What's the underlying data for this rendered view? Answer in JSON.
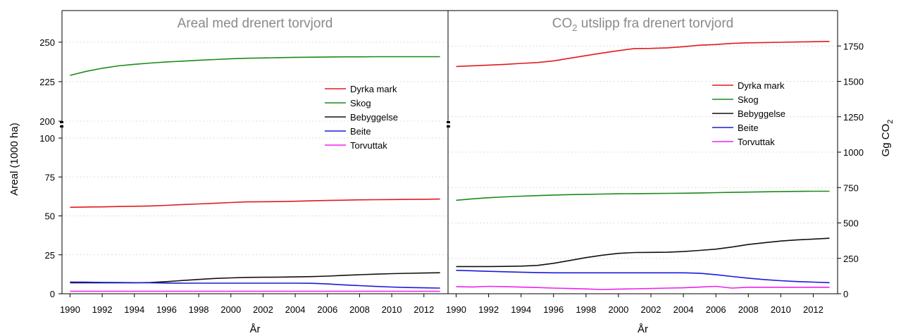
{
  "chart_data": [
    {
      "type": "line",
      "title": "Areal med drenert torvjord",
      "xlabel": "År",
      "ylabel": "Areal (1000 ha)",
      "xlim": [
        1989.5,
        2013.5
      ],
      "x_ticks": [
        1990,
        1992,
        1994,
        1996,
        1998,
        2000,
        2002,
        2004,
        2006,
        2008,
        2010,
        2012
      ],
      "y_axis_broken": true,
      "y_lower_range": [
        0,
        100
      ],
      "y_lower_ticks": [
        0,
        25,
        50,
        75,
        100
      ],
      "y_upper_range": [
        200,
        270
      ],
      "y_upper_ticks": [
        200,
        225,
        250
      ],
      "grid": "horizontal",
      "legend_position": "right",
      "x": [
        1990,
        1991,
        1992,
        1993,
        1994,
        1995,
        1996,
        1997,
        1998,
        1999,
        2000,
        2001,
        2002,
        2003,
        2004,
        2005,
        2006,
        2007,
        2008,
        2009,
        2010,
        2011,
        2012,
        2013
      ],
      "series": [
        {
          "name": "Dyrka mark",
          "color": "#e31a1c",
          "values": [
            55.5,
            55.7,
            55.8,
            56.0,
            56.2,
            56.4,
            56.8,
            57.3,
            57.7,
            58.1,
            58.6,
            59.0,
            59.1,
            59.2,
            59.4,
            59.7,
            59.9,
            60.1,
            60.3,
            60.4,
            60.5,
            60.6,
            60.7,
            60.8
          ]
        },
        {
          "name": "Skog",
          "color": "#1a8a1a",
          "values": [
            229,
            231.5,
            233.5,
            235,
            236,
            236.8,
            237.5,
            238,
            238.5,
            239,
            239.5,
            239.8,
            240,
            240.2,
            240.4,
            240.5,
            240.6,
            240.7,
            240.7,
            240.8,
            240.8,
            240.8,
            240.8,
            240.8
          ]
        },
        {
          "name": "Bebyggelse",
          "color": "#111111",
          "values": [
            7.0,
            7.0,
            7.0,
            7.0,
            7.0,
            7.2,
            7.8,
            8.5,
            9.2,
            9.8,
            10.2,
            10.5,
            10.6,
            10.7,
            10.8,
            11.0,
            11.3,
            11.8,
            12.2,
            12.6,
            12.9,
            13.1,
            13.3,
            13.5
          ]
        },
        {
          "name": "Beite",
          "color": "#1a1adb",
          "values": [
            7.5,
            7.4,
            7.3,
            7.2,
            7.1,
            7.0,
            6.9,
            6.8,
            6.8,
            6.8,
            6.8,
            6.8,
            6.8,
            6.8,
            6.8,
            6.7,
            6.3,
            5.7,
            5.2,
            4.7,
            4.3,
            4.0,
            3.8,
            3.6
          ]
        },
        {
          "name": "Torvuttak",
          "color": "#ee22ee",
          "values": [
            1.6,
            1.6,
            1.6,
            1.6,
            1.6,
            1.6,
            1.6,
            1.6,
            1.6,
            1.6,
            1.6,
            1.6,
            1.6,
            1.6,
            1.6,
            1.6,
            1.6,
            1.6,
            1.6,
            1.6,
            1.6,
            1.6,
            1.6,
            1.6
          ]
        }
      ]
    },
    {
      "type": "line",
      "title_main": "CO",
      "title_sub": "2",
      "title_rest": " utslipp fra drenert torvjord",
      "xlabel": "År",
      "ylabel_main": "Gg CO",
      "ylabel_sub": "2",
      "xlim": [
        1989.5,
        2013.5
      ],
      "x_ticks": [
        1990,
        1992,
        1994,
        1996,
        1998,
        2000,
        2002,
        2004,
        2006,
        2008,
        2010,
        2012
      ],
      "ylim": [
        0,
        2000
      ],
      "y_ticks": [
        0,
        250,
        500,
        750,
        1000,
        1250,
        1500,
        1750
      ],
      "y_axis_side": "right",
      "grid": "horizontal",
      "legend_position": "right",
      "x": [
        1990,
        1991,
        1992,
        1993,
        1994,
        1995,
        1996,
        1997,
        1998,
        1999,
        2000,
        2001,
        2002,
        2003,
        2004,
        2005,
        2006,
        2007,
        2008,
        2009,
        2010,
        2011,
        2012,
        2013
      ],
      "series": [
        {
          "name": "Dyrka mark",
          "color": "#e31a1c",
          "values": [
            1605,
            1610,
            1615,
            1620,
            1627,
            1633,
            1645,
            1663,
            1682,
            1700,
            1717,
            1732,
            1733,
            1737,
            1745,
            1755,
            1760,
            1768,
            1772,
            1774,
            1776,
            1778,
            1780,
            1782
          ]
        },
        {
          "name": "Skog",
          "color": "#1a8a1a",
          "values": [
            660,
            670,
            678,
            684,
            689,
            693,
            697,
            700,
            702,
            704,
            706,
            707,
            708,
            709,
            710,
            712,
            714,
            716,
            718,
            720,
            722,
            723,
            724,
            724
          ]
        },
        {
          "name": "Bebyggelse",
          "color": "#111111",
          "values": [
            192,
            192,
            192,
            193,
            195,
            200,
            215,
            235,
            255,
            272,
            285,
            291,
            292,
            293,
            298,
            306,
            315,
            330,
            348,
            360,
            372,
            380,
            386,
            392
          ]
        },
        {
          "name": "Beite",
          "color": "#1a1adb",
          "values": [
            165,
            162,
            158,
            155,
            152,
            150,
            148,
            148,
            148,
            148,
            148,
            148,
            148,
            148,
            148,
            145,
            135,
            122,
            110,
            100,
            92,
            86,
            82,
            78
          ]
        },
        {
          "name": "Torvuttak",
          "color": "#ee22ee",
          "values": [
            50,
            48,
            52,
            50,
            47,
            44,
            40,
            37,
            34,
            30,
            33,
            35,
            37,
            40,
            42,
            47,
            52,
            40,
            46,
            46,
            46,
            46,
            46,
            46
          ]
        }
      ]
    }
  ]
}
